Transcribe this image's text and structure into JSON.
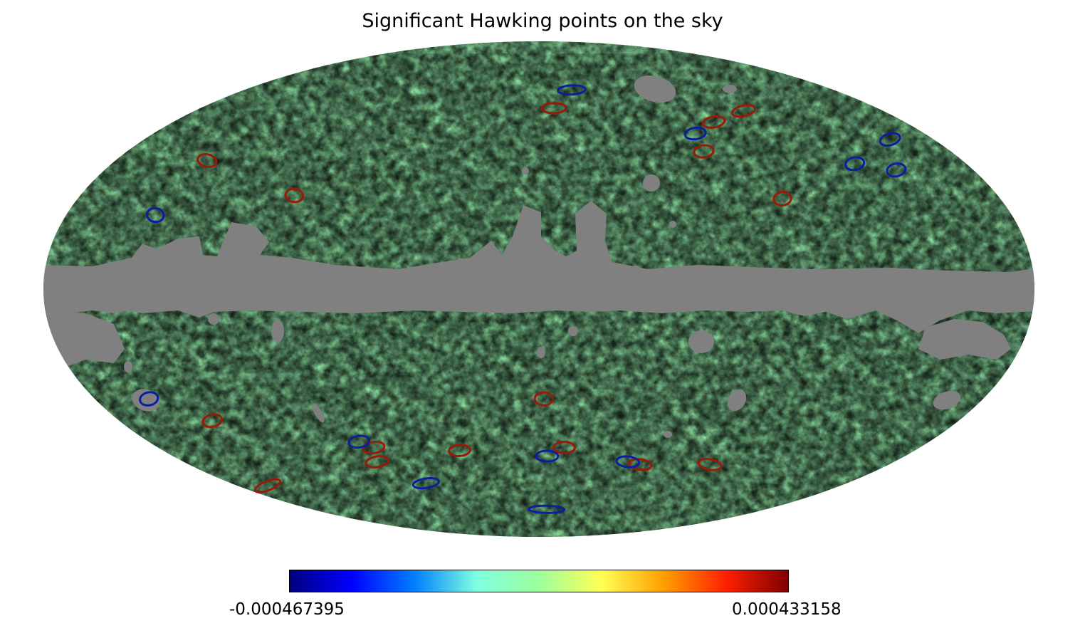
{
  "title": "Significant Hawking points on the sky",
  "colorbar": {
    "min_label": "-0.000467395",
    "max_label": "0.000433158",
    "stops": [
      "#00007f",
      "#0000ff",
      "#007fff",
      "#7fffdf",
      "#9dff9d",
      "#ffff55",
      "#ff9f00",
      "#ff2000",
      "#7f0000"
    ]
  },
  "colors": {
    "mask": "#808080",
    "mid": "#8fe4a4",
    "cold_ring": "#0a1ea0",
    "hot_ring": "#9a1a08",
    "background": "#ffffff"
  },
  "projection": "mollweide",
  "hawking_points": [
    {
      "lon": -148,
      "lat": 36,
      "sign": "cold"
    },
    {
      "lon": -160,
      "lat": 46,
      "sign": "cold"
    },
    {
      "lon": -133,
      "lat": 38,
      "sign": "cold"
    },
    {
      "lon": -107,
      "lat": 56,
      "sign": "hot"
    },
    {
      "lon": -86,
      "lat": 52,
      "sign": "hot"
    },
    {
      "lon": -73,
      "lat": 48,
      "sign": "cold"
    },
    {
      "lon": -72,
      "lat": 42,
      "sign": "hot"
    },
    {
      "lon": -95,
      "lat": 27,
      "sign": "hot"
    },
    {
      "lon": -20,
      "lat": 64,
      "sign": "cold"
    },
    {
      "lon": -8,
      "lat": 57,
      "sign": "hot"
    },
    {
      "lon": 96,
      "lat": 28,
      "sign": "hot"
    },
    {
      "lon": 141,
      "lat": 39,
      "sign": "hot"
    },
    {
      "lon": 146,
      "lat": 22,
      "sign": "cold"
    },
    {
      "lon": -2,
      "lat": -33,
      "sign": "hot"
    },
    {
      "lon": -12,
      "lat": -49,
      "sign": "hot"
    },
    {
      "lon": -4,
      "lat": -52,
      "sign": "cold"
    },
    {
      "lon": -52,
      "lat": -55,
      "sign": "hot"
    },
    {
      "lon": -45,
      "lat": -54,
      "sign": "cold"
    },
    {
      "lon": -88,
      "lat": -55,
      "sign": "hot"
    },
    {
      "lon": 38,
      "lat": -50,
      "sign": "hot"
    },
    {
      "lon": 78,
      "lat": -49,
      "sign": "hot"
    },
    {
      "lon": 83,
      "lat": -47,
      "sign": "cold"
    },
    {
      "lon": 82,
      "lat": -54,
      "sign": "hot"
    },
    {
      "lon": 66,
      "lat": -62,
      "sign": "cold"
    },
    {
      "lon": 140,
      "lat": -40,
      "sign": "hot"
    },
    {
      "lon": 158,
      "lat": -33,
      "sign": "cold"
    },
    {
      "lon": 162,
      "lat": -63,
      "sign": "hot"
    },
    {
      "lon": -6,
      "lat": -73,
      "sign": "cold"
    }
  ]
}
